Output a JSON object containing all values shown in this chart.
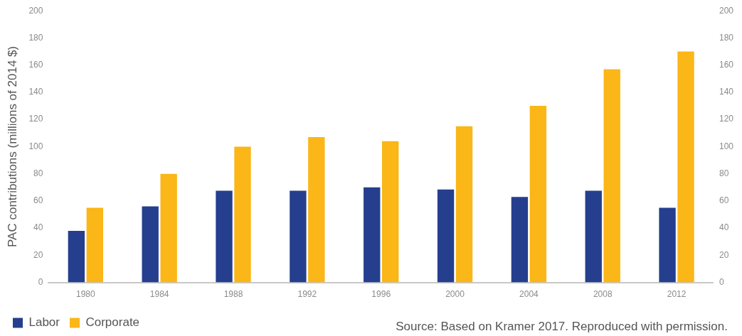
{
  "chart_data": {
    "type": "bar",
    "ylabel": "PAC contributions (millions of 2014 $)",
    "categories": [
      "1980",
      "1984",
      "1988",
      "1992",
      "1996",
      "2000",
      "2004",
      "2008",
      "2012"
    ],
    "series": [
      {
        "name": "Labor",
        "color": "#253f8e",
        "values": [
          38,
          56,
          67.5,
          67.5,
          70,
          68.5,
          63,
          67.5,
          55
        ]
      },
      {
        "name": "Corporate",
        "color": "#fbb617",
        "values": [
          55,
          80,
          100,
          107,
          104,
          115,
          130,
          157,
          170
        ]
      }
    ],
    "ylim": [
      0,
      200
    ],
    "yticks": [
      0,
      20,
      40,
      60,
      80,
      100,
      120,
      140,
      160,
      180,
      200
    ],
    "y2lim": [
      0,
      200
    ],
    "y2ticks": [
      0,
      20,
      40,
      60,
      80,
      100,
      120,
      140,
      160,
      180,
      200
    ],
    "grid": false,
    "legend": "bottom left",
    "annotations": [
      "Source: Based on Kramer 2017. Reproduced with permission."
    ]
  }
}
